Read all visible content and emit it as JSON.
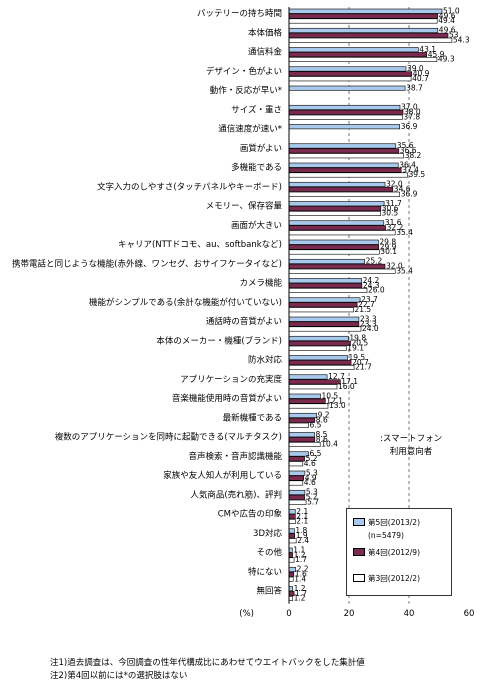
{
  "chart_data": {
    "type": "bar",
    "orientation": "horizontal",
    "title": "",
    "xlabel": "(%)",
    "ylabel": "",
    "xlim": [
      0,
      60
    ],
    "xticks": [
      "0",
      "20",
      "40",
      "60"
    ],
    "grid": "dashed vertical at 20 and 40",
    "legend_placement": "bottom-right",
    "categories": [
      "バッテリーの持ち時間",
      "本体価格",
      "通信料金",
      "デザイン・色がよい",
      "動作・反応が早い*",
      "サイズ・重さ",
      "通信速度が速い*",
      "画質がよい",
      "多機能である",
      "文字入力のしやすさ(タッチパネルやキーボード)",
      "メモリー、保存容量",
      "画面が大きい",
      "キャリア(NTTドコモ、au、softbankなど)",
      "携帯電話と同じような機能(赤外線、ワンセグ、おサイフケータイなど)",
      "カメラ機能",
      "機能がシンプルである(余計な機能が付いていない)",
      "通話時の音質がよい",
      "本体のメーカー・機種(ブランド)",
      "防水対応",
      "アプリケーションの充実度",
      "音楽機能使用時の音質がよい",
      "最新機種である",
      "複数のアプリケーションを同時に起動できる(マルチタスク)",
      "音声検索・音声認識機能",
      "家族や友人知人が利用している",
      "人気商品(売れ筋)、評判",
      "CMや広告の印象",
      "3D対応",
      "その他",
      "特にない",
      "無回答"
    ],
    "series": [
      {
        "name": "第5回(2013/2)",
        "sub": "(n=5479)",
        "color": "#a8c8ec",
        "values": [
          51.0,
          49.6,
          43.1,
          39.0,
          38.7,
          37.0,
          36.9,
          35.6,
          36.4,
          32.0,
          31.7,
          31.6,
          29.8,
          25.2,
          24.2,
          23.7,
          23.3,
          19.8,
          19.5,
          12.7,
          10.5,
          9.2,
          8.5,
          6.5,
          5.3,
          5.3,
          2.1,
          1.8,
          1.1,
          2.2,
          1.2
        ],
        "labels": [
          "51.0",
          "49.6",
          "43.1",
          "39.0",
          "38.7",
          "37.0",
          "36.9",
          "35.6",
          "36.4",
          "32.0",
          "31.7",
          "31.6",
          "29.8",
          "25.2",
          "24.2",
          "23.7",
          "23.3",
          "19.8",
          "19.5",
          "12.7",
          "10.5",
          "9.2",
          "8.5",
          "6.5",
          "5.3",
          "5.3",
          "2.1",
          "1.8",
          "1.1",
          "2.2",
          "1.2"
        ]
      },
      {
        "name": "第4回(2012/9)",
        "sub": "",
        "color": "#7a2a4e",
        "values": [
          49.6,
          53,
          45.9,
          40.9,
          null,
          38.0,
          null,
          36.6,
          37.4,
          34.6,
          30.6,
          32.2,
          29.9,
          32.0,
          24.3,
          22.7,
          23.3,
          20.5,
          20.7,
          17.1,
          12.1,
          8.6,
          8.6,
          5.2,
          4.9,
          5.2,
          2.1,
          1.9,
          1.2,
          1.6,
          1.7
        ],
        "labels": [
          "49.6",
          "53",
          "45.9",
          "40.9",
          "",
          "38.0",
          "",
          "36.6",
          "37.4",
          "34.6",
          "30.6",
          "32.2",
          "29.9",
          "32.0",
          "24.3",
          "22.7",
          "23.3",
          "20.5",
          "20.7",
          "17.1",
          "12.1",
          "8.6",
          "8.6",
          "5.2",
          "4.9",
          "5.2",
          "2.1",
          "1.9",
          "1.2",
          "1.6",
          "1.7"
        ]
      },
      {
        "name": "第3回(2012/2)",
        "sub": "",
        "color": "#ffffff",
        "values": [
          49.4,
          54.3,
          49.3,
          40.7,
          null,
          37.8,
          null,
          38.2,
          39.5,
          36.9,
          30.5,
          35.4,
          30.1,
          35.4,
          26.0,
          21.5,
          24.0,
          19.1,
          21.7,
          16.0,
          13.0,
          6.5,
          10.4,
          4.6,
          4.6,
          5.7,
          2.1,
          2.4,
          1.7,
          1.4,
          1.2
        ],
        "labels": [
          "49.4",
          "54.3",
          "49.3",
          "40.7",
          "",
          "37.8",
          "",
          "38.2",
          "39.5",
          "36.9",
          "30.5",
          "35.4",
          "30.1",
          "35.4",
          "26.0",
          "21.5",
          "24.0",
          "19.1",
          "21.7",
          "16.0",
          "13.0",
          "6.5",
          "10.4",
          "4.6",
          "4.6",
          "5.7",
          "2.1",
          "2.4",
          "1.7",
          "1.4",
          "1.2"
        ]
      }
    ]
  },
  "legend": {
    "s1": "第5回(2013/2)",
    "s1_sub": "(n=5479)",
    "s2": "第4回(2012/9)",
    "s3": "第3回(2012/2)"
  },
  "segment_note": {
    "line1": ":スマートフォン",
    "line2": "利用意向者"
  },
  "notes": {
    "note1": "注1)過去調査は、今回調査の性年代構成比にあわせてウエイトバックをした集計値",
    "note2": "注2)第4回以前には*の選択肢はない"
  }
}
